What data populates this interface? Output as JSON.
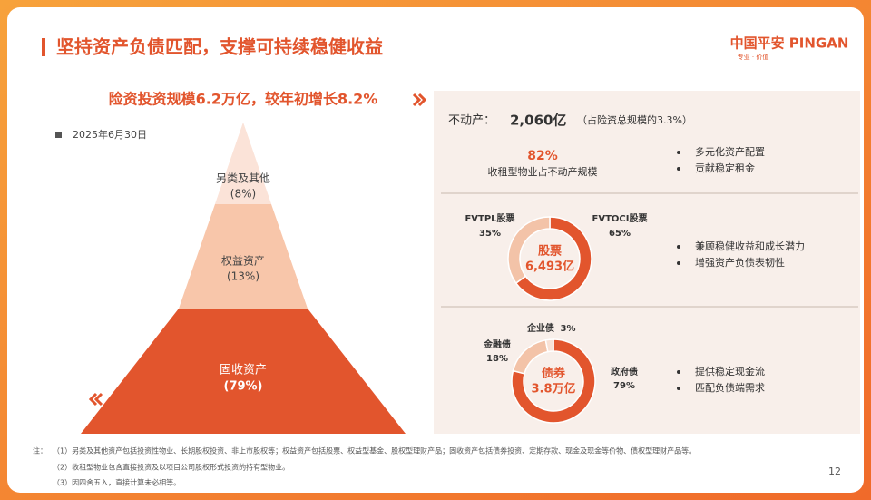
{
  "header": {
    "title": "坚持资产负债匹配，支撑可持续稳健收益",
    "logo": "中国平安 PINGAN",
    "slogan": "专业 · 价值"
  },
  "headline": "险资投资规模6.2万亿，较年初增长8.2%",
  "date": "2025年6月30日",
  "pyramid": {
    "layers": [
      {
        "name": "另类及其他",
        "label": "(8%)"
      },
      {
        "name": "权益资产",
        "label": "(13%)"
      },
      {
        "name": "固收资产",
        "label": "(79%)"
      }
    ]
  },
  "real_estate": {
    "heading": "不动产：",
    "amount": "2,060亿",
    "note": "（占险资总规模的3.3%）",
    "share": "82%",
    "share_caption": "收租型物业占不动产规模",
    "points": [
      "多元化资产配置",
      "贡献稳定租金"
    ]
  },
  "donuts": [
    {
      "center_title": "股票",
      "center_value": "6,493亿",
      "segments": [
        {
          "name": "FVTOCI股票",
          "value": 65,
          "label": "65%",
          "color": "#e2552d"
        },
        {
          "name": "FVTPL股票",
          "value": 35,
          "label": "35%",
          "color": "#f3c3a8"
        }
      ],
      "points": [
        "兼顾稳健收益和成长潜力",
        "增强资产负债表韧性"
      ]
    },
    {
      "center_title": "债券",
      "center_value": "3.8万亿",
      "segments": [
        {
          "name": "政府债",
          "value": 79,
          "label": "79%",
          "color": "#e2552d"
        },
        {
          "name": "金融债",
          "value": 18,
          "label": "18%",
          "color": "#f3c3a8"
        },
        {
          "name": "企业债",
          "value": 3,
          "label": "3%",
          "color": "#f8e2d6"
        }
      ],
      "points": [
        "提供稳定现金流",
        "匹配负债端需求"
      ]
    }
  ],
  "footnotes": {
    "prefix": "注：",
    "items": [
      "（1）另类及其他资产包括投资性物业、长期股权投资、非上市股权等；权益资产包括股票、权益型基金、股权型理财产品；固收资产包括债券投资、定期存款、现金及现金等价物、债权型理财产品等。",
      "（2）收租型物业包含直接投资及以项目公司股权形式投资的持有型物业。",
      "（3）因四舍五入，直接计算未必相等。"
    ]
  },
  "page_number": "12"
}
